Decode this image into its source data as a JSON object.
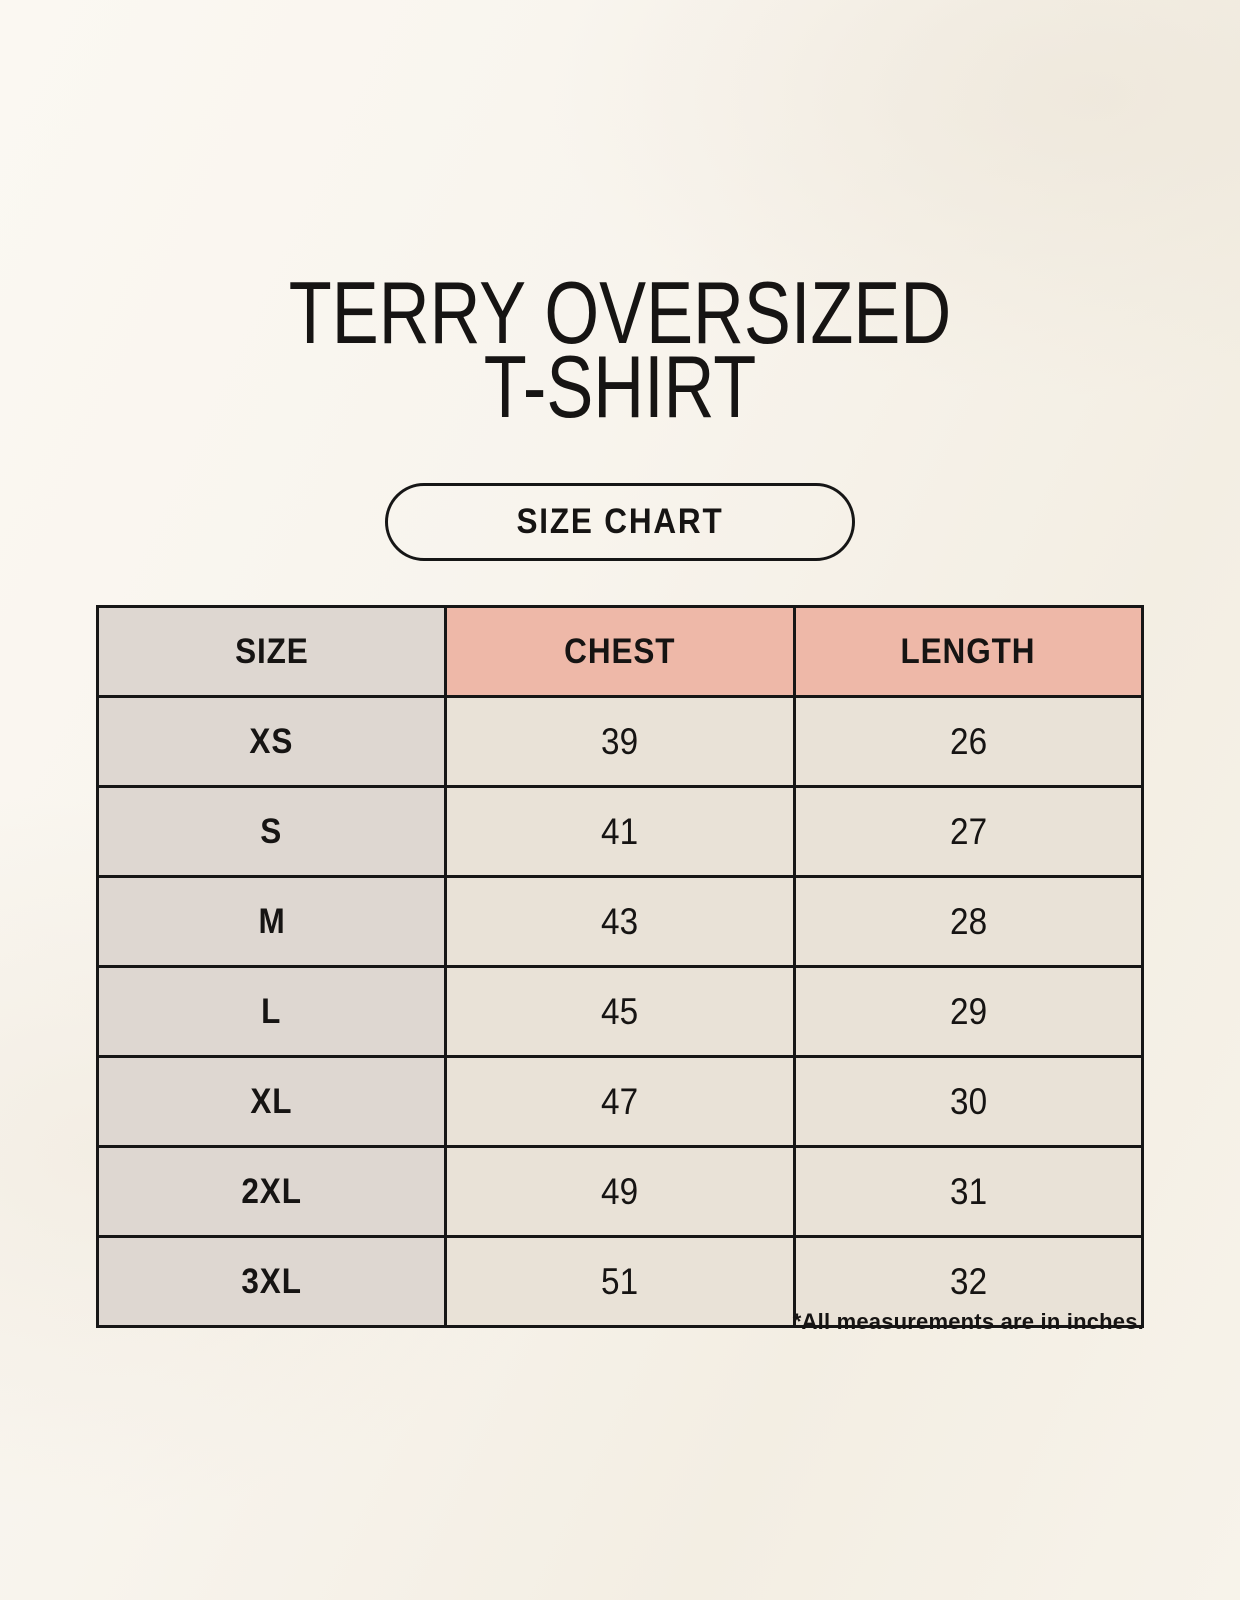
{
  "page": {
    "title_line1": "TERRY OVERSIZED",
    "title_line2": "T-SHIRT",
    "size_chart_button": "SIZE CHART",
    "footnote": "*All measurements are in inches."
  },
  "colors": {
    "page_background": "#f7f3ec",
    "header_accent": "#eeb8a8",
    "size_column_bg": "#ded7d1",
    "data_cell_bg": "#e9e2d7",
    "table_border": "#161616",
    "text_color": "#161413"
  },
  "chart_data": {
    "type": "table",
    "title": "TERRY OVERSIZED T-SHIRT",
    "subtitle": "SIZE CHART",
    "units": "inches",
    "units_note": "*All measurements are in inches.",
    "columns": [
      "SIZE",
      "CHEST",
      "LENGTH"
    ],
    "rows": [
      {
        "size": "XS",
        "chest": 39,
        "length": 26
      },
      {
        "size": "S",
        "chest": 41,
        "length": 27
      },
      {
        "size": "M",
        "chest": 43,
        "length": 28
      },
      {
        "size": "L",
        "chest": 45,
        "length": 29
      },
      {
        "size": "XL",
        "chest": 47,
        "length": 30
      },
      {
        "size": "2XL",
        "chest": 49,
        "length": 31
      },
      {
        "size": "3XL",
        "chest": 51,
        "length": 32
      }
    ]
  }
}
